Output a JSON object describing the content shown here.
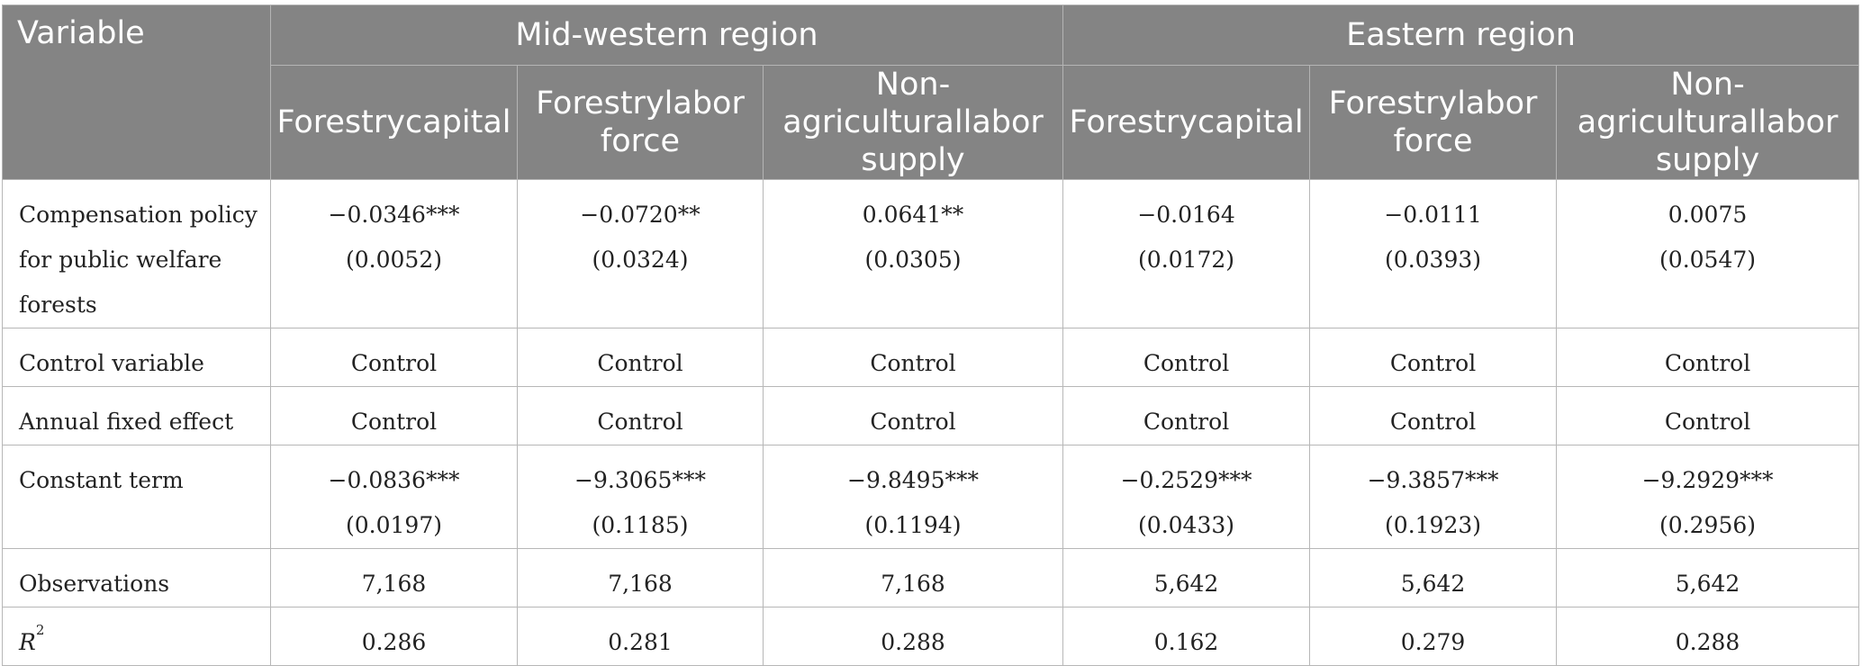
{
  "header": {
    "variable": "Variable",
    "groups": [
      "Mid-western region",
      "Eastern region"
    ],
    "columns": [
      [
        "Forestry",
        "capital"
      ],
      [
        "Forestry",
        "labor force"
      ],
      [
        "Non-agricultural",
        "labor supply"
      ],
      [
        "Forestry",
        "capital"
      ],
      [
        "Forestry",
        "labor force"
      ],
      [
        "Non-agricultural",
        "labor supply"
      ]
    ]
  },
  "rows": {
    "policy": {
      "label": [
        "Compensation policy",
        "for public welfare",
        "forests"
      ],
      "coef": [
        "−0.0346***",
        "−0.0720**",
        "0.0641**",
        "−0.0164",
        "−0.0111",
        "0.0075"
      ],
      "se": [
        "(0.0052)",
        "(0.0324)",
        "(0.0305)",
        "(0.0172)",
        "(0.0393)",
        "(0.0547)"
      ]
    },
    "control": {
      "label": "Control variable",
      "values": [
        "Control",
        "Control",
        "Control",
        "Control",
        "Control",
        "Control"
      ]
    },
    "annual": {
      "label": "Annual fixed effect",
      "values": [
        "Control",
        "Control",
        "Control",
        "Control",
        "Control",
        "Control"
      ]
    },
    "constant": {
      "label": "Constant term",
      "coef": [
        "−0.0836***",
        "−9.3065***",
        "−9.8495***",
        "−0.2529***",
        "−9.3857***",
        "−9.2929***"
      ],
      "se": [
        "(0.0197)",
        "(0.1185)",
        "(0.1194)",
        "(0.0433)",
        "(0.1923)",
        "(0.2956)"
      ]
    },
    "observations": {
      "label": "Observations",
      "values": [
        "7,168",
        "7,168",
        "7,168",
        "5,642",
        "5,642",
        "5,642"
      ]
    },
    "r2": {
      "label_main": "R",
      "label_sup": "2",
      "values": [
        "0.286",
        "0.281",
        "0.288",
        "0.162",
        "0.279",
        "0.288"
      ]
    }
  }
}
